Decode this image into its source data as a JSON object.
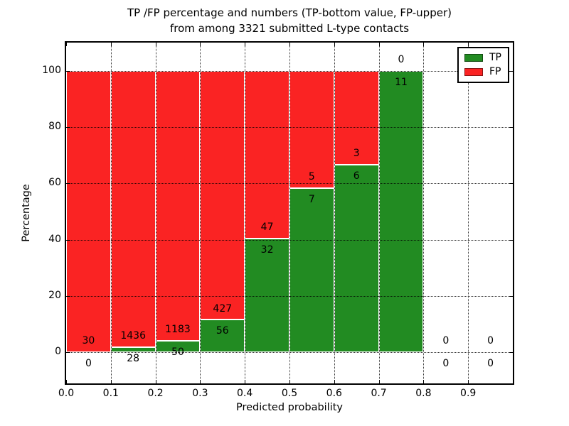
{
  "figure": {
    "title_line1": "TP /FP percentage and numbers (TP-bottom value, FP-upper)",
    "title_line2": "from among 3321 submitted L-type contacts"
  },
  "chart_data": {
    "type": "bar",
    "subtype": "stacked-percentage-histogram",
    "title": "TP /FP percentage and numbers (TP-bottom value, FP-upper) from among 3321 submitted L-type contacts",
    "xlabel": "Predicted probability",
    "ylabel": "Percentage",
    "xlim": [
      0.0,
      1.0
    ],
    "ylim": [
      -11,
      110
    ],
    "bin_width": 0.1,
    "grid": "dotted, drawn over bars",
    "legend_position": "upper right",
    "categories": [
      "0.0-0.1",
      "0.1-0.2",
      "0.2-0.3",
      "0.3-0.4",
      "0.4-0.5",
      "0.5-0.6",
      "0.6-0.7",
      "0.7-0.8",
      "0.8-0.9",
      "0.9-1.0"
    ],
    "series": [
      {
        "name": "TP",
        "color": "#228B22",
        "counts": [
          0,
          28,
          50,
          56,
          32,
          7,
          6,
          11,
          0,
          0
        ]
      },
      {
        "name": "FP",
        "color": "#FA2323",
        "counts": [
          30,
          1436,
          1183,
          427,
          47,
          5,
          3,
          0,
          0,
          0
        ]
      }
    ],
    "tp_percent": [
      0.0,
      1.91,
      4.06,
      11.59,
      40.51,
      58.33,
      66.67,
      100.0,
      0.0,
      0.0
    ],
    "total_contacts": 3321,
    "xticks": [
      "0.0",
      "0.1",
      "0.2",
      "0.3",
      "0.4",
      "0.5",
      "0.6",
      "0.7",
      "0.8",
      "0.9"
    ],
    "yticks": [
      0,
      20,
      40,
      60,
      80,
      100
    ],
    "label_note": "FP count printed above TP/FP boundary, TP count below boundary"
  },
  "legend": {
    "items": [
      {
        "label": "TP",
        "color": "#228B22"
      },
      {
        "label": "FP",
        "color": "#FA2323"
      }
    ]
  },
  "axes": {
    "xlabel": "Predicted probability",
    "ylabel": "Percentage"
  }
}
